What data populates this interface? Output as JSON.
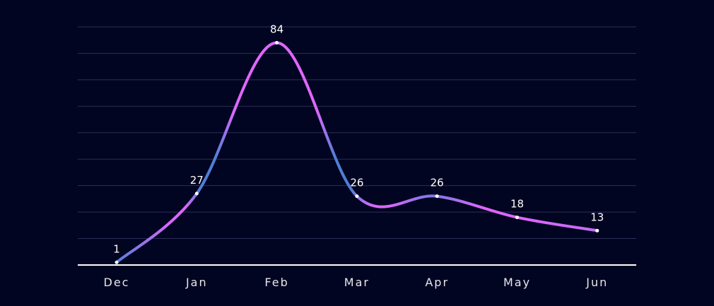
{
  "chart_data": {
    "type": "line",
    "curve": "smooth",
    "categories": [
      "Dec",
      "Jan",
      "Feb",
      "Mar",
      "Apr",
      "May",
      "Jun"
    ],
    "values": [
      1,
      27,
      84,
      26,
      26,
      18,
      13
    ],
    "data_labels": [
      "1",
      "27",
      "84",
      "26",
      "26",
      "18",
      "13"
    ],
    "ylim": [
      0,
      90
    ],
    "y_grid_step": 10,
    "grid": true,
    "legend": false,
    "title": "",
    "xlabel": "",
    "ylabel": "",
    "colors": {
      "background": "#020521",
      "line_gradient": [
        "#e066ff",
        "#4f7fd6"
      ],
      "grid": "#2b2d55",
      "axis": "#ffffff",
      "text": "#ffffff",
      "drop_line": "#ffffff"
    }
  }
}
